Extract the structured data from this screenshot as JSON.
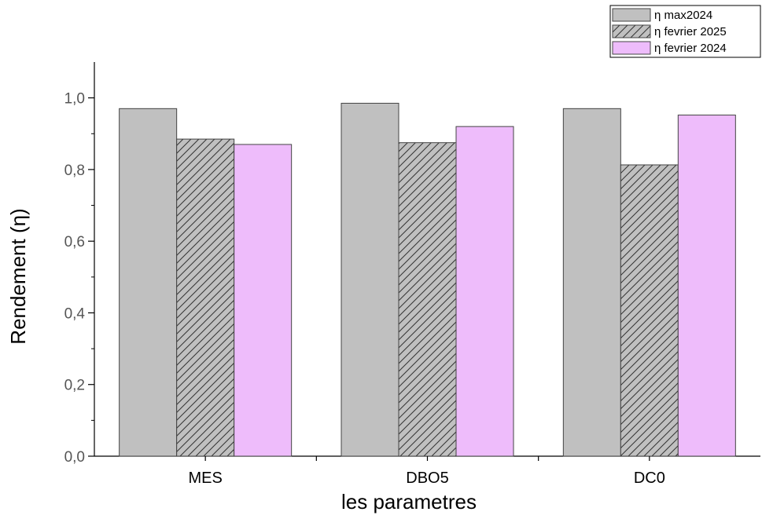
{
  "chart_data": {
    "type": "bar",
    "categories": [
      "MES",
      "DBO5",
      "DC0"
    ],
    "series": [
      {
        "name": "η max2024",
        "values": [
          0.97,
          0.985,
          0.97
        ],
        "color": "#c0c0c0",
        "pattern": "solid"
      },
      {
        "name": "η fevrier 2025",
        "values": [
          0.885,
          0.875,
          0.813
        ],
        "color": "#c0c0c0",
        "pattern": "hatched"
      },
      {
        "name": "η fevrier 2024",
        "values": [
          0.87,
          0.92,
          0.952
        ],
        "color": "#eebcfb",
        "pattern": "solid"
      }
    ],
    "title": "",
    "xlabel": "les parametres",
    "ylabel": "Rendement (η)",
    "ylim": [
      0,
      1.1
    ],
    "yticks": [
      "0,0",
      "0,2",
      "0,4",
      "0,6",
      "0,8",
      "1,0"
    ],
    "grid": false,
    "legend_position": "top-right"
  }
}
